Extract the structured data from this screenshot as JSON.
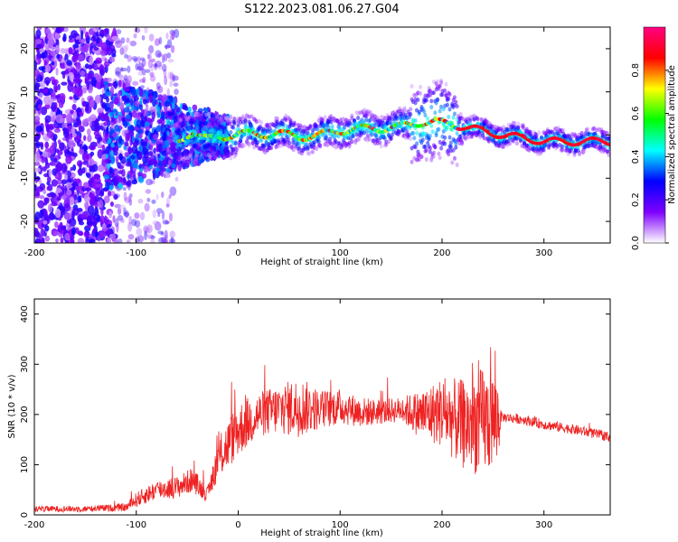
{
  "title": "S122.2023.081.06.27.G04",
  "chart_data": [
    {
      "type": "heatmap",
      "xlabel": "Height of straight line (km)",
      "ylabel": "Frequency (Hz)",
      "xlim": [
        -200,
        365
      ],
      "ylim": [
        -25,
        25
      ],
      "xticks": [
        -200,
        -100,
        0,
        100,
        200,
        300
      ],
      "xtick_labels": [
        "-200",
        "-100",
        "0",
        "100",
        "200",
        "300"
      ],
      "yticks": [
        -20,
        -10,
        0,
        10,
        20
      ],
      "ytick_labels": [
        "-20",
        "-10",
        "0",
        "10",
        "20"
      ],
      "colorbar": {
        "label": "Normalized spectral amplitude",
        "range": [
          0,
          1
        ],
        "ticks": [
          0.0,
          0.2,
          0.4,
          0.6,
          0.8
        ],
        "tick_labels": [
          "0.0",
          "0.2",
          "0.4",
          "0.6",
          "0.8"
        ],
        "colormap": [
          "#ffffff",
          "#7f00ff",
          "#0000ff",
          "#00ffff",
          "#00ff00",
          "#ffff00",
          "#ff0000",
          "#ff0080"
        ]
      },
      "ridge_x": [
        -60,
        -45,
        -30,
        -15,
        0,
        20,
        40,
        60,
        80,
        100,
        120,
        140,
        160,
        180,
        195,
        210,
        230,
        260,
        290,
        300,
        365
      ],
      "ridge_freq": [
        -2,
        1,
        -1,
        -0.5,
        0.5,
        0,
        0.5,
        -0.5,
        0,
        1,
        1.5,
        1.5,
        2,
        3,
        3,
        2.5,
        1.5,
        0,
        -1,
        -1.5,
        -1.5
      ]
    },
    {
      "type": "line",
      "xlabel": "Height of straight line (km)",
      "ylabel": "SNR (10 * v/v)",
      "xlim": [
        -200,
        365
      ],
      "ylim": [
        0,
        430
      ],
      "xticks": [
        -200,
        -100,
        0,
        100,
        200,
        300
      ],
      "xtick_labels": [
        "-200",
        "-100",
        "0",
        "100",
        "200",
        "300"
      ],
      "yticks": [
        0,
        100,
        200,
        300,
        400
      ],
      "ytick_labels": [
        "0",
        "100",
        "200",
        "300",
        "400"
      ],
      "line_color": "#ee2222",
      "envelope": {
        "x": [
          -200,
          -150,
          -110,
          -100,
          -80,
          -60,
          -45,
          -30,
          -20,
          -10,
          0,
          20,
          40,
          60,
          80,
          100,
          120,
          140,
          160,
          180,
          200,
          220,
          240,
          255,
          258,
          280,
          300,
          330,
          365
        ],
        "center": [
          12,
          12,
          15,
          30,
          50,
          55,
          70,
          40,
          110,
          140,
          170,
          200,
          210,
          215,
          210,
          215,
          205,
          205,
          210,
          200,
          205,
          180,
          185,
          190,
          195,
          190,
          180,
          170,
          155
        ],
        "spread": [
          6,
          6,
          8,
          15,
          20,
          22,
          25,
          15,
          40,
          50,
          55,
          45,
          50,
          60,
          40,
          35,
          30,
          25,
          25,
          50,
          70,
          90,
          110,
          90,
          10,
          10,
          10,
          10,
          10
        ]
      }
    }
  ]
}
